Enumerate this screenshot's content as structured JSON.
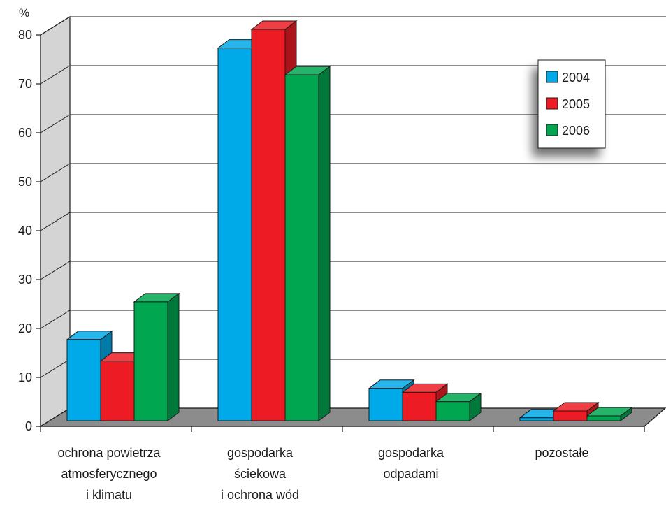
{
  "chart_data": {
    "type": "bar",
    "unit_label": "%",
    "ylim": [
      0,
      80
    ],
    "yticks": [
      "0",
      "10",
      "20",
      "30",
      "40",
      "50",
      "60",
      "70",
      "80"
    ],
    "categories": [
      [
        "ochrona powietrza",
        "atmosferycznego",
        "i klimatu"
      ],
      [
        "gospodarka",
        "ściekowa",
        "i ochrona wód"
      ],
      [
        "gospodarka",
        "odpadami"
      ],
      [
        "pozostałe"
      ]
    ],
    "series": [
      {
        "name": "2004",
        "color": "#00a9e8",
        "values": [
          16.6,
          76.2,
          6.6,
          0.6
        ]
      },
      {
        "name": "2005",
        "color": "#ed1c24",
        "values": [
          12.2,
          80.0,
          5.8,
          2.0
        ]
      },
      {
        "name": "2006",
        "color": "#00a650",
        "values": [
          24.3,
          70.7,
          3.9,
          1.0
        ]
      }
    ],
    "legend_position": "top-right",
    "grid": true,
    "style": "3d-bar"
  }
}
